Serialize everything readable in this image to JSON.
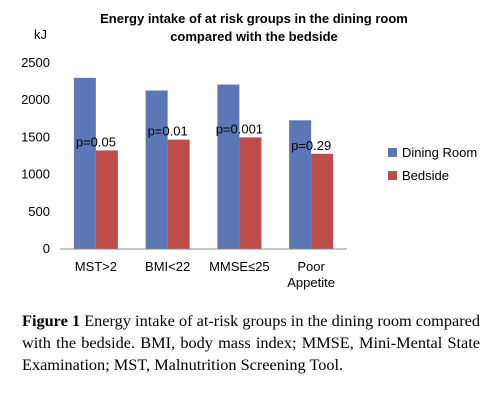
{
  "chart_data": {
    "type": "bar",
    "title_lines": [
      "Energy intake of at risk groups in the dining room",
      "compared with the bedside"
    ],
    "ylabel": "kJ",
    "xlabel": "",
    "categories": [
      [
        "MST>2"
      ],
      [
        "BMI<22"
      ],
      [
        "MMSE≤25"
      ],
      [
        "Poor",
        "Appetite"
      ]
    ],
    "series": [
      {
        "name": "Dining Room",
        "color": "#5B77B5",
        "values": [
          2300,
          2130,
          2210,
          1730
        ]
      },
      {
        "name": "Bedside",
        "color": "#BE4C48",
        "values": [
          1325,
          1470,
          1500,
          1280
        ]
      }
    ],
    "annotations": [
      "p=0.05",
      "p=0.01",
      "p=0.001",
      "p=0.29"
    ],
    "ylim": [
      0,
      2500
    ],
    "yticks": [
      0,
      500,
      1000,
      1500,
      2000,
      2500
    ],
    "grid": false,
    "legend": "right"
  },
  "caption": {
    "label": "Figure 1",
    "text": " Energy intake of at-risk groups in the dining room compared with the bedside. BMI, body mass index; MMSE, Mini-Mental State Examination; MST, Malnutrition Screening Tool."
  }
}
